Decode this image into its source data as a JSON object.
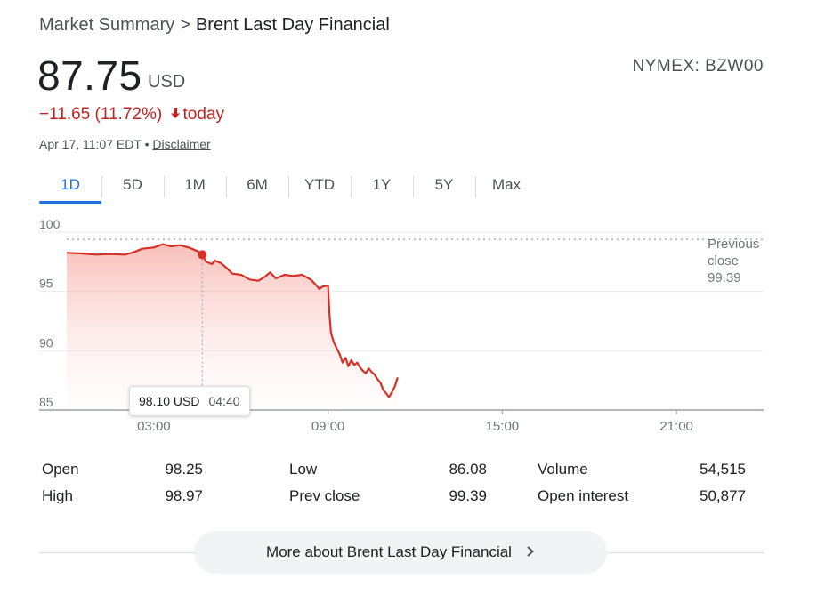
{
  "breadcrumb": {
    "root": "Market Summary",
    "separator": ">",
    "current": "Brent Last Day Financial"
  },
  "quote": {
    "price": "87.75",
    "currency": "USD",
    "ticker": "NYMEX: BZW00",
    "change": "−11.65 (11.72%)",
    "change_direction_icon": "arrow-down-icon",
    "change_suffix": "today",
    "timestamp": "Apr 17, 11:07 EDT",
    "bullet": "•",
    "disclaimer": "Disclaimer"
  },
  "colors": {
    "down": "#c5221f",
    "line": "#d93025",
    "accent": "#1a73e8",
    "grid": "#e8eaed",
    "axis": "#9aa0a6"
  },
  "tabs": [
    {
      "label": "1D",
      "active": true
    },
    {
      "label": "5D"
    },
    {
      "label": "1M"
    },
    {
      "label": "6M"
    },
    {
      "label": "YTD"
    },
    {
      "label": "1Y"
    },
    {
      "label": "5Y"
    },
    {
      "label": "Max"
    }
  ],
  "tooltip": {
    "value": "98.10 USD",
    "time": "04:40"
  },
  "chart_data": {
    "type": "area",
    "x_unit": "hours",
    "xlim": [
      0,
      24
    ],
    "ylim": [
      85,
      100
    ],
    "yticks": [
      100,
      95,
      90,
      85
    ],
    "xticks": [
      {
        "value": 3,
        "label": "03:00"
      },
      {
        "value": 9,
        "label": "09:00"
      },
      {
        "value": 15,
        "label": "15:00"
      },
      {
        "value": 21,
        "label": "21:00"
      }
    ],
    "grid": true,
    "reference_line": {
      "value": 99.39,
      "label": [
        "Previous",
        "close",
        "99.39"
      ]
    },
    "highlight_point": {
      "x": 4.667,
      "y": 98.1
    },
    "series": [
      {
        "points": [
          [
            0,
            98.25
          ],
          [
            0.5,
            98.2
          ],
          [
            1.0,
            98.1
          ],
          [
            1.5,
            98.15
          ],
          [
            2.0,
            98.1
          ],
          [
            2.3,
            98.3
          ],
          [
            2.6,
            98.6
          ],
          [
            3.0,
            98.7
          ],
          [
            3.3,
            98.97
          ],
          [
            3.6,
            98.8
          ],
          [
            3.9,
            98.9
          ],
          [
            4.2,
            98.7
          ],
          [
            4.5,
            98.4
          ],
          [
            4.667,
            98.1
          ],
          [
            4.8,
            97.5
          ],
          [
            5.0,
            97.3
          ],
          [
            5.1,
            97.6
          ],
          [
            5.3,
            97.4
          ],
          [
            5.5,
            97.0
          ],
          [
            5.7,
            96.5
          ],
          [
            6.0,
            96.4
          ],
          [
            6.3,
            96.0
          ],
          [
            6.6,
            95.9
          ],
          [
            6.8,
            96.2
          ],
          [
            7.0,
            96.6
          ],
          [
            7.2,
            96.1
          ],
          [
            7.5,
            96.4
          ],
          [
            7.8,
            96.3
          ],
          [
            8.1,
            96.4
          ],
          [
            8.4,
            96.0
          ],
          [
            8.6,
            95.5
          ],
          [
            8.7,
            95.2
          ],
          [
            8.8,
            95.4
          ],
          [
            9.0,
            95.5
          ],
          [
            9.05,
            93.0
          ],
          [
            9.1,
            91.5
          ],
          [
            9.2,
            90.7
          ],
          [
            9.3,
            90.2
          ],
          [
            9.4,
            89.7
          ],
          [
            9.5,
            89.0
          ],
          [
            9.6,
            89.4
          ],
          [
            9.7,
            88.7
          ],
          [
            9.8,
            89.2
          ],
          [
            9.9,
            88.8
          ],
          [
            10.0,
            89.0
          ],
          [
            10.1,
            88.6
          ],
          [
            10.2,
            88.3
          ],
          [
            10.3,
            88.1
          ],
          [
            10.4,
            88.5
          ],
          [
            10.5,
            88.2
          ],
          [
            10.6,
            88.0
          ],
          [
            10.7,
            87.6
          ],
          [
            10.8,
            87.3
          ],
          [
            10.9,
            86.7
          ],
          [
            11.0,
            86.4
          ],
          [
            11.1,
            86.08
          ],
          [
            11.2,
            86.5
          ],
          [
            11.3,
            87.0
          ],
          [
            11.35,
            87.4
          ],
          [
            11.4,
            87.75
          ]
        ]
      }
    ]
  },
  "stats": [
    {
      "label": "Open",
      "value": "98.25"
    },
    {
      "label": "High",
      "value": "98.97"
    },
    {
      "label": "Low",
      "value": "86.08"
    },
    {
      "label": "Prev close",
      "value": "99.39"
    },
    {
      "label": "Volume",
      "value": "54,515"
    },
    {
      "label": "Open interest",
      "value": "50,877"
    }
  ],
  "more_button": {
    "label": "More about Brent Last Day Financial",
    "icon": "chevron-right-icon"
  }
}
